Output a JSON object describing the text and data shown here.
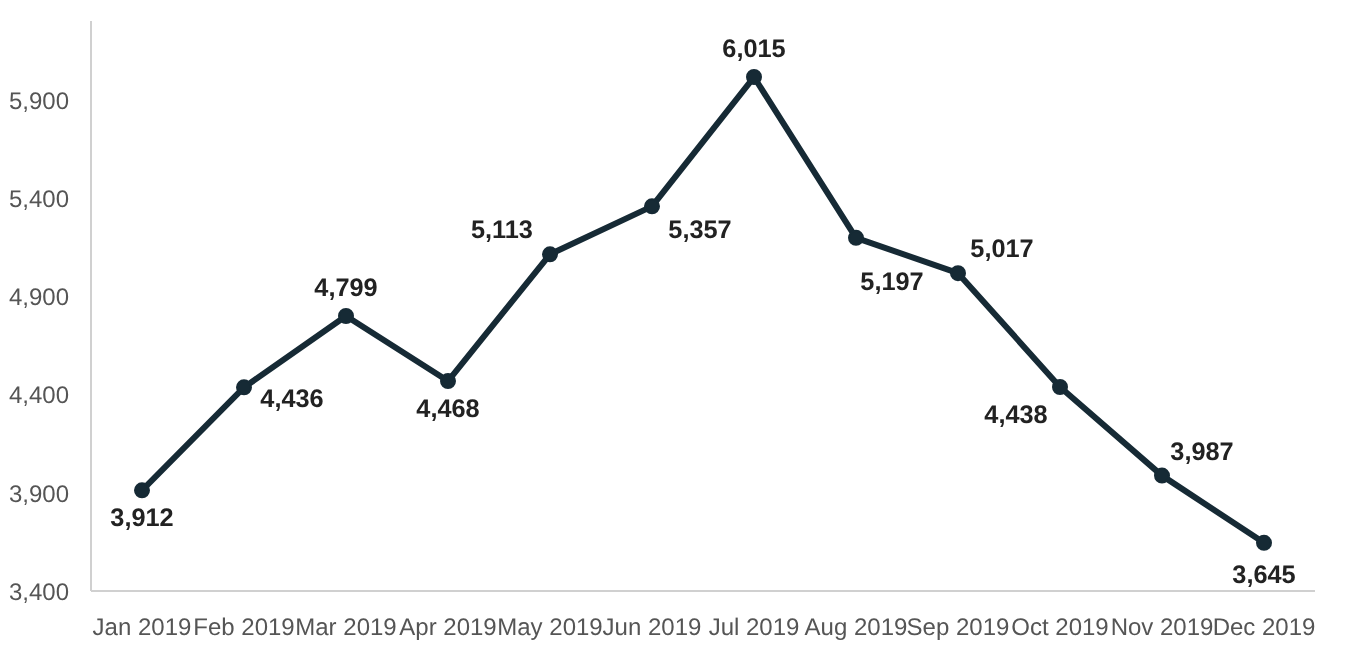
{
  "chart_data": {
    "type": "line",
    "categories": [
      "Jan 2019",
      "Feb 2019",
      "Mar 2019",
      "Apr 2019",
      "May 2019",
      "Jun 2019",
      "Jul 2019",
      "Aug 2019",
      "Sep 2019",
      "Oct 2019",
      "Nov 2019",
      "Dec 2019"
    ],
    "series": [
      {
        "color": "#162a35",
        "values": [
          3912,
          4436,
          4799,
          4468,
          5113,
          5357,
          6015,
          5197,
          5017,
          4438,
          3987,
          3645
        ]
      }
    ],
    "ylim": [
      3400,
      6300
    ],
    "yticks": [
      {
        "value": 3400,
        "label": "3,400"
      },
      {
        "value": 3900,
        "label": "3,900"
      },
      {
        "value": 4400,
        "label": "4,400"
      },
      {
        "value": 4900,
        "label": "4,900"
      },
      {
        "value": 5400,
        "label": "5,400"
      },
      {
        "value": 5900,
        "label": "5,900"
      }
    ],
    "value_labels": [
      "3,912",
      "4,436",
      "4,799",
      "4,468",
      "5,113",
      "5,357",
      "6,015",
      "5,197",
      "5,017",
      "4,438",
      "3,987",
      "3,645"
    ],
    "marker": "circle",
    "line_style": "solid",
    "grid": false
  }
}
